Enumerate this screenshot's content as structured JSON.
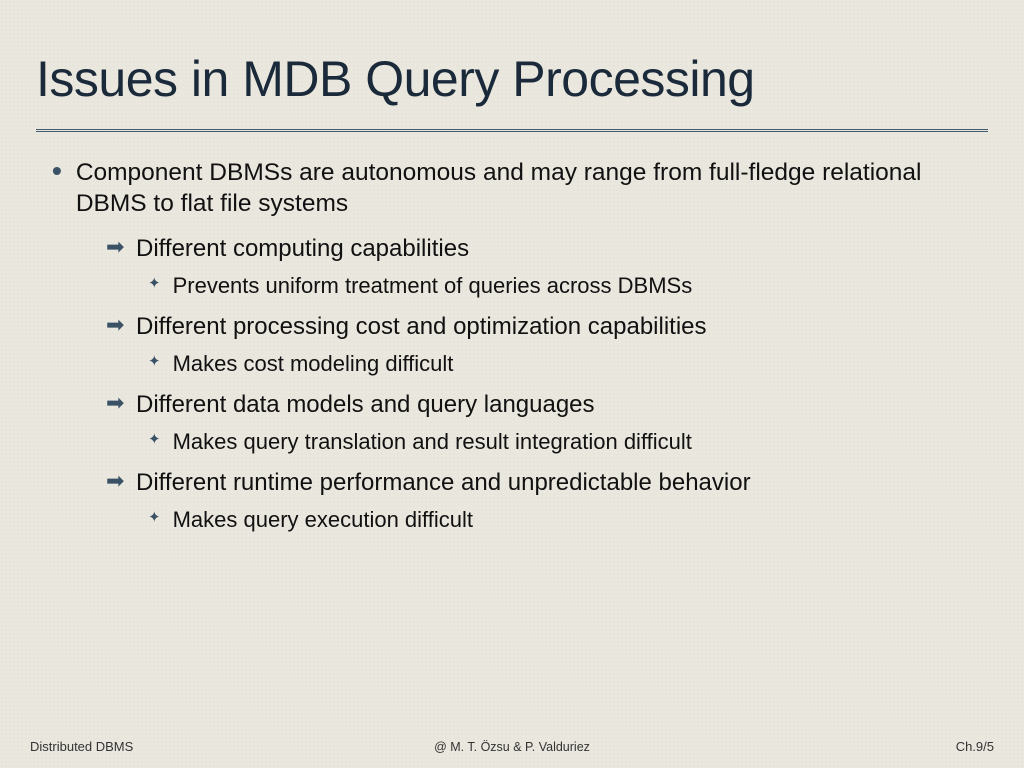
{
  "title": "Issues in MDB Query Processing",
  "colors": {
    "background": "#ebe8df",
    "title_color": "#1a2a3a",
    "divider_color": "#425b70",
    "bullet_color": "#3b5166",
    "text_color": "#111111"
  },
  "typography": {
    "title_fontsize": 50,
    "bullet_fontsize": 24.5,
    "arrow_fontsize": 24,
    "diamond_fontsize": 22,
    "footer_fontsize": 13
  },
  "bullet": {
    "text": "Component DBMSs are autonomous and may range from full-fledge relational DBMS to flat file systems"
  },
  "subs": [
    {
      "text": "Different computing capabilities",
      "detail": "Prevents uniform treatment of queries across DBMSs"
    },
    {
      "text": "Different processing cost and optimization capabilities",
      "detail": "Makes cost modeling difficult"
    },
    {
      "text": "Different data models and query languages",
      "detail": "Makes query translation and result integration difficult"
    },
    {
      "text": "Different runtime performance and unpredictable behavior",
      "detail": "Makes query execution difficult"
    }
  ],
  "footer": {
    "left": "Distributed DBMS",
    "center": "@ M. T. Özsu & P. Valduriez",
    "right": "Ch.9/5"
  }
}
